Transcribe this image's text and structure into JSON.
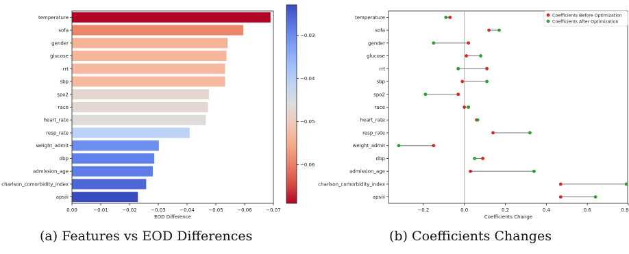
{
  "captions": {
    "a": "(a) Features vs EOD Differences",
    "b": "(b) Coefficients Changes"
  },
  "chart_data": [
    {
      "type": "bar",
      "orientation": "horizontal",
      "xlabel": "EOD Difference",
      "x_ticks": [
        "0.00",
        "−0.01",
        "−0.02",
        "−0.03",
        "−0.04",
        "−0.05",
        "−0.06",
        "−0.07"
      ],
      "xlim": [
        0.0,
        -0.07
      ],
      "categories": [
        "temperature",
        "sofa",
        "gender",
        "glucose",
        "rrt",
        "sbp",
        "spo2",
        "race",
        "heart_rate",
        "resp_rate",
        "weight_admit",
        "dbp",
        "admission_age",
        "charlson_comorbidity_index",
        "apsiii"
      ],
      "values": [
        -0.069,
        -0.0595,
        -0.0541,
        -0.0537,
        -0.0532,
        -0.0532,
        -0.0476,
        -0.0473,
        -0.0465,
        -0.0409,
        -0.0302,
        -0.0286,
        -0.0281,
        -0.0258,
        -0.0229
      ],
      "colorbar": {
        "colormap": "coolwarm_r",
        "range": [
          -0.069,
          -0.0229
        ],
        "ticks": [
          "−0.03",
          "−0.04",
          "−0.05",
          "−0.06"
        ],
        "tick_values": [
          -0.03,
          -0.04,
          -0.05,
          -0.06
        ]
      },
      "grid": false
    },
    {
      "type": "dumbbell",
      "xlabel": "Coefficients Change",
      "x_ticks": [
        "−0.2",
        "0.0",
        "0.2",
        "0.4",
        "0.6",
        "0.8"
      ],
      "x_tick_values": [
        -0.2,
        0.0,
        0.2,
        0.4,
        0.6,
        0.8
      ],
      "xlim": [
        -0.37,
        0.8
      ],
      "reference_line_x": 0.0,
      "categories": [
        "temperature",
        "sofa",
        "gender",
        "glucose",
        "rrt",
        "sbp",
        "spo2",
        "race",
        "heart_rate",
        "resp_rate",
        "weight_admit",
        "dbp",
        "admission_age",
        "charlson_comorbidity_index",
        "apsiii"
      ],
      "series": [
        {
          "name": "Coefficients Before Optimization",
          "color": "#d62728",
          "values": [
            -0.07,
            0.12,
            0.02,
            0.01,
            0.11,
            -0.01,
            -0.03,
            0.0,
            0.06,
            0.14,
            -0.15,
            0.09,
            0.03,
            0.47,
            0.47
          ]
        },
        {
          "name": "Coefficients After Optimization",
          "color": "#2ca02c",
          "values": [
            -0.09,
            0.17,
            -0.15,
            0.08,
            -0.03,
            0.11,
            -0.19,
            0.02,
            0.065,
            0.32,
            -0.32,
            0.05,
            0.34,
            0.79,
            0.64
          ]
        }
      ],
      "legend": "top-right",
      "grid": false
    }
  ]
}
